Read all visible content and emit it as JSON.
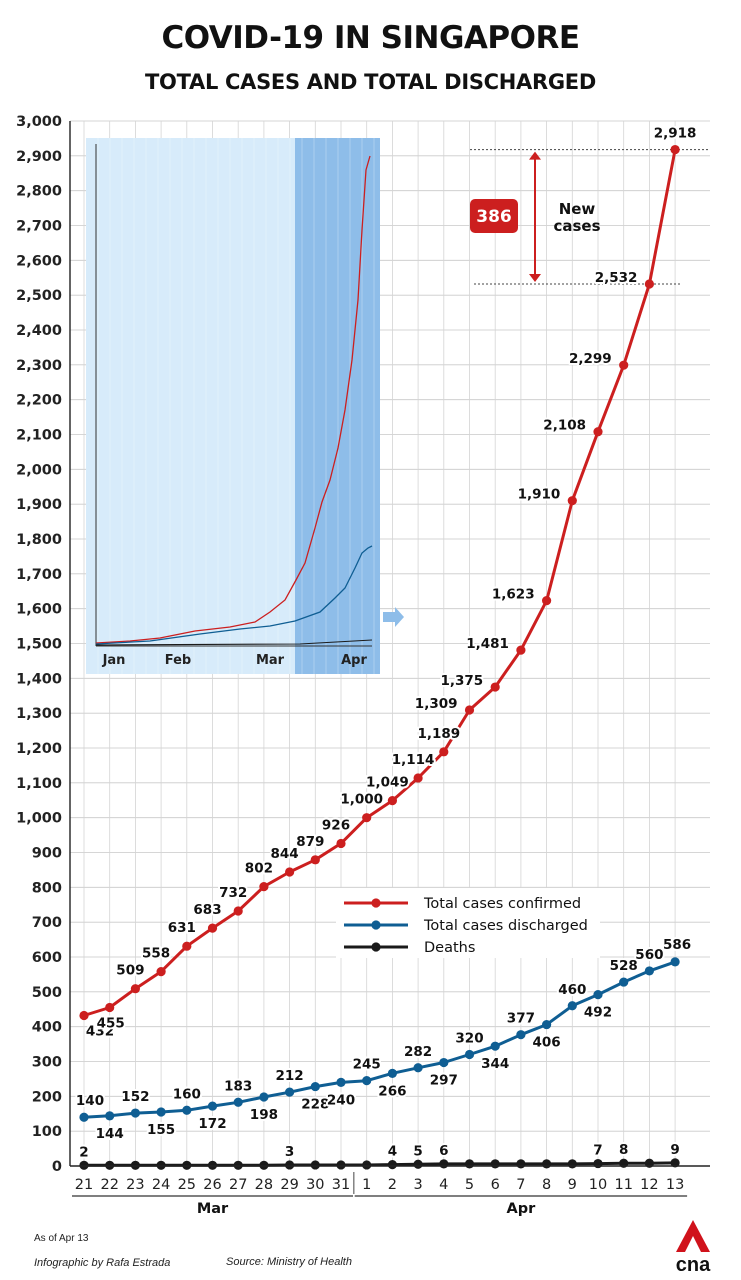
{
  "title": "COVID-19 IN SINGAPORE",
  "subtitle": "TOTAL CASES AND TOTAL DISCHARGED",
  "footer": {
    "as_of": "As of Apr 13",
    "credit": "Infographic by Rafa Estrada",
    "source": "Source: Ministry of Health",
    "logo_text": "cna"
  },
  "colors": {
    "confirmed": "#cc1f1f",
    "discharged": "#0f5e93",
    "deaths": "#1a1a1a",
    "inset_bg": "#d7ebfa",
    "inset_highlight": "#8ebde9",
    "badge": "#cc1f1f"
  },
  "chart_data": {
    "type": "line",
    "title": "COVID-19 IN SINGAPORE",
    "subtitle": "TOTAL CASES AND TOTAL DISCHARGED",
    "x": [
      "21",
      "22",
      "23",
      "24",
      "25",
      "26",
      "27",
      "28",
      "29",
      "30",
      "31",
      "1",
      "2",
      "3",
      "4",
      "5",
      "6",
      "7",
      "8",
      "9",
      "10",
      "11",
      "12",
      "13"
    ],
    "month_groups": [
      {
        "label": "Mar",
        "from": 0,
        "to": 10
      },
      {
        "label": "Apr",
        "from": 11,
        "to": 23
      }
    ],
    "ylim": [
      0,
      3000
    ],
    "yticks": [
      0,
      100,
      200,
      300,
      400,
      500,
      600,
      700,
      800,
      900,
      1000,
      1100,
      1200,
      1300,
      1400,
      1500,
      1600,
      1700,
      1800,
      1900,
      2000,
      2100,
      2200,
      2300,
      2400,
      2500,
      2600,
      2700,
      2800,
      2900,
      3000
    ],
    "ytick_labels": [
      "0",
      "100",
      "200",
      "300",
      "400",
      "500",
      "600",
      "700",
      "800",
      "900",
      "1,000",
      "1,100",
      "1,200",
      "1,300",
      "1,400",
      "1,500",
      "1,600",
      "1,700",
      "1,800",
      "1,900",
      "2,000",
      "2,100",
      "2,200",
      "2,300",
      "2,400",
      "2,500",
      "2,600",
      "2,700",
      "2,800",
      "2,900",
      "3,000"
    ],
    "grid": true,
    "legend_position": "middle-right",
    "series": [
      {
        "name": "Total cases confirmed",
        "color": "#cc1f1f",
        "values": [
          432,
          455,
          509,
          558,
          631,
          683,
          732,
          802,
          844,
          879,
          926,
          1000,
          1049,
          1114,
          1189,
          1309,
          1375,
          1481,
          1623,
          1910,
          2108,
          2299,
          2532,
          2918
        ],
        "labels": [
          "432",
          "455",
          "509",
          "558",
          "631",
          "683",
          "732",
          "802",
          "844",
          "879",
          "926",
          "1,000",
          "1,049",
          "1,114",
          "1,189",
          "1,309",
          "1,375",
          "1,481",
          "1,623",
          "1,910",
          "2,108",
          "2,299",
          "2,532",
          "2,918"
        ]
      },
      {
        "name": "Total cases discharged",
        "color": "#0f5e93",
        "values": [
          140,
          144,
          152,
          155,
          160,
          172,
          183,
          198,
          212,
          228,
          240,
          245,
          266,
          282,
          297,
          320,
          344,
          377,
          406,
          460,
          492,
          528,
          560,
          586
        ],
        "labels": [
          "140",
          "144",
          "152",
          "155",
          "160",
          "172",
          "183",
          "198",
          "212",
          "228",
          "240",
          "245",
          "266",
          "282",
          "297",
          "320",
          "344",
          "377",
          "406",
          "460",
          "492",
          "528",
          "560",
          "586"
        ]
      },
      {
        "name": "Deaths",
        "color": "#1a1a1a",
        "values": [
          2,
          2,
          2,
          2,
          2,
          2,
          2,
          2,
          3,
          3,
          3,
          3,
          4,
          5,
          6,
          6,
          6,
          6,
          6,
          6,
          7,
          8,
          8,
          9
        ],
        "labels": [
          "2",
          "",
          "",
          "",
          "",
          "",
          "",
          "",
          "3",
          "",
          "",
          "",
          "4",
          "5",
          "6",
          "",
          "",
          "",
          "",
          "",
          "7",
          "8",
          "",
          "9"
        ]
      }
    ],
    "annotation": {
      "value": "386",
      "text_line1": "New",
      "text_line2": "cases"
    },
    "inset": {
      "x_labels": [
        "Jan",
        "Feb",
        "Mar",
        "Apr"
      ]
    }
  }
}
